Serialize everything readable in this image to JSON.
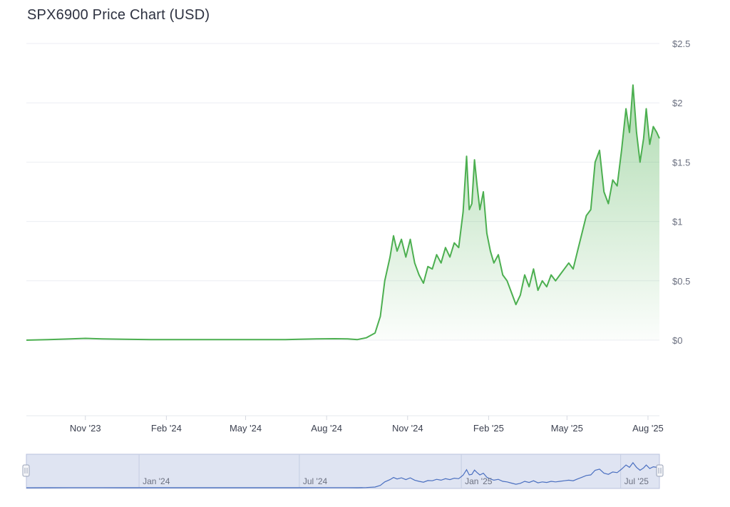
{
  "chart_data": {
    "type": "area",
    "title": "SPX6900 Price Chart (USD)",
    "xlabel": "",
    "ylabel": "",
    "y_unit_prefix": "$",
    "ylim": [
      0,
      2.5
    ],
    "xlim": [
      "2023-08-26",
      "2025-08-14"
    ],
    "y_ticks": [
      "$0",
      "$0.5",
      "$1",
      "$1.5",
      "$2",
      "$2.5"
    ],
    "y_tick_values": [
      0,
      0.5,
      1,
      1.5,
      2,
      2.5
    ],
    "x_ticks": [
      "Nov '23",
      "Feb '24",
      "May '24",
      "Aug '24",
      "Nov '24",
      "Feb '25",
      "May '25",
      "Aug '25"
    ],
    "x_tick_dates": [
      "2023-11-01",
      "2024-02-01",
      "2024-05-01",
      "2024-08-01",
      "2024-11-01",
      "2025-02-01",
      "2025-05-01",
      "2025-08-01"
    ],
    "navigator_ticks": [
      "Jan '24",
      "Jul '24",
      "Jan '25",
      "Jul '25"
    ],
    "navigator_tick_dates": [
      "2024-01-01",
      "2024-07-01",
      "2025-01-01",
      "2025-07-01"
    ],
    "colors": {
      "line": "#4caf50",
      "fill_top": "#4caf50",
      "navigator_line": "#4a6fc0",
      "navigator_fill": "#dfe4f2"
    },
    "grid": true,
    "series": [
      {
        "x": [
          "2023-08-26",
          "2023-09-20",
          "2023-10-15",
          "2023-11-01",
          "2023-11-20",
          "2023-12-15",
          "2024-01-15",
          "2024-02-15",
          "2024-03-15",
          "2024-04-15",
          "2024-05-15",
          "2024-06-15",
          "2024-07-01",
          "2024-07-20",
          "2024-08-10",
          "2024-08-25",
          "2024-09-05",
          "2024-09-15",
          "2024-09-25",
          "2024-10-01",
          "2024-10-06",
          "2024-10-12",
          "2024-10-16",
          "2024-10-20",
          "2024-10-25",
          "2024-10-30",
          "2024-11-04",
          "2024-11-09",
          "2024-11-14",
          "2024-11-19",
          "2024-11-24",
          "2024-11-29",
          "2024-12-04",
          "2024-12-09",
          "2024-12-14",
          "2024-12-19",
          "2024-12-24",
          "2024-12-29",
          "2025-01-03",
          "2025-01-07",
          "2025-01-10",
          "2025-01-13",
          "2025-01-16",
          "2025-01-19",
          "2025-01-22",
          "2025-01-26",
          "2025-01-30",
          "2025-02-03",
          "2025-02-07",
          "2025-02-12",
          "2025-02-17",
          "2025-02-22",
          "2025-02-27",
          "2025-03-04",
          "2025-03-09",
          "2025-03-14",
          "2025-03-19",
          "2025-03-24",
          "2025-03-29",
          "2025-04-03",
          "2025-04-08",
          "2025-04-13",
          "2025-04-18",
          "2025-04-23",
          "2025-04-28",
          "2025-05-03",
          "2025-05-08",
          "2025-05-13",
          "2025-05-18",
          "2025-05-23",
          "2025-05-28",
          "2025-06-02",
          "2025-06-07",
          "2025-06-12",
          "2025-06-17",
          "2025-06-22",
          "2025-06-27",
          "2025-07-02",
          "2025-07-07",
          "2025-07-11",
          "2025-07-15",
          "2025-07-19",
          "2025-07-23",
          "2025-07-27",
          "2025-07-30",
          "2025-08-03",
          "2025-08-07",
          "2025-08-11",
          "2025-08-14"
        ],
        "values": [
          0.0,
          0.005,
          0.01,
          0.015,
          0.01,
          0.008,
          0.005,
          0.005,
          0.004,
          0.005,
          0.004,
          0.005,
          0.008,
          0.01,
          0.012,
          0.01,
          0.005,
          0.02,
          0.06,
          0.2,
          0.5,
          0.7,
          0.88,
          0.75,
          0.85,
          0.7,
          0.85,
          0.65,
          0.55,
          0.48,
          0.62,
          0.6,
          0.72,
          0.65,
          0.78,
          0.7,
          0.82,
          0.78,
          1.08,
          1.55,
          1.1,
          1.15,
          1.52,
          1.3,
          1.1,
          1.25,
          0.9,
          0.75,
          0.65,
          0.72,
          0.55,
          0.5,
          0.4,
          0.3,
          0.38,
          0.55,
          0.45,
          0.6,
          0.42,
          0.5,
          0.45,
          0.55,
          0.5,
          0.55,
          0.6,
          0.65,
          0.6,
          0.75,
          0.9,
          1.05,
          1.1,
          1.5,
          1.6,
          1.25,
          1.15,
          1.35,
          1.3,
          1.6,
          1.95,
          1.75,
          2.15,
          1.75,
          1.5,
          1.7,
          1.95,
          1.65,
          1.8,
          1.75,
          1.7
        ]
      }
    ]
  }
}
